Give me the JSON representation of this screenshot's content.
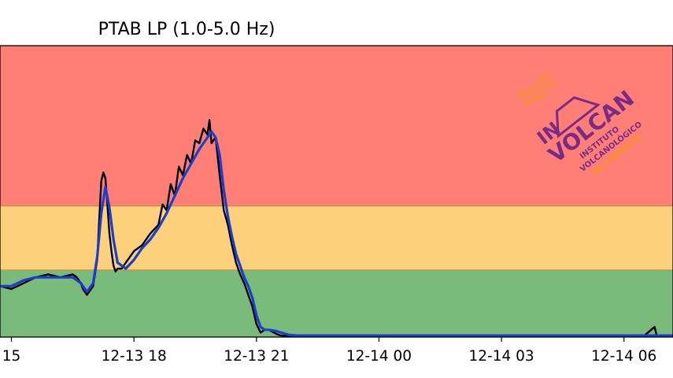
{
  "chart_data": {
    "type": "line",
    "title": "PTAB LP (1.0-5.0 Hz)",
    "xlabel": "",
    "ylabel": "",
    "x_tick_labels": [
      "15",
      "12-13 18",
      "12-13 21",
      "12-14 00",
      "12-14 03",
      "12-14 06"
    ],
    "x_tick_hours": [
      15,
      18,
      21,
      24,
      27,
      30
    ],
    "x_range_hours": [
      14.72,
      31.2
    ],
    "y_range": [
      0,
      100
    ],
    "bands": [
      {
        "name": "green",
        "from": 0,
        "to": 23,
        "color": "#7aba7a"
      },
      {
        "name": "yellow",
        "from": 23,
        "to": 45,
        "color": "#fdd17c"
      },
      {
        "name": "red",
        "from": 45,
        "to": 100,
        "color": "#ff7f77"
      }
    ],
    "grid": false,
    "series": [
      {
        "color": "#000000",
        "style": "raw",
        "x": [
          14.72,
          15.0,
          15.3,
          15.6,
          15.9,
          16.2,
          16.5,
          16.6,
          16.7,
          16.75,
          16.85,
          17.0,
          17.1,
          17.15,
          17.2,
          17.25,
          17.3,
          17.35,
          17.4,
          17.45,
          17.5,
          17.55,
          17.6,
          17.7,
          17.8,
          17.9,
          18.0,
          18.2,
          18.4,
          18.6,
          18.7,
          18.8,
          18.9,
          19.0,
          19.1,
          19.2,
          19.3,
          19.4,
          19.5,
          19.6,
          19.7,
          19.8,
          19.85,
          19.9,
          20.0,
          20.1,
          20.2,
          20.3,
          20.4,
          20.5,
          20.6,
          20.7,
          20.75,
          20.8,
          20.9,
          21.0,
          21.1,
          21.2,
          21.3,
          21.5,
          21.6,
          21.8,
          22.0,
          22.2,
          22.5,
          23.0,
          23.5,
          24.0,
          24.5,
          25.0,
          25.5,
          26.0,
          26.5,
          27.0,
          27.5,
          28.0,
          28.5,
          29.0,
          29.5,
          30.0,
          30.3,
          30.5,
          30.75,
          30.8,
          31.0,
          31.2
        ],
        "y": [
          17.5,
          16.5,
          18.5,
          20.5,
          21.5,
          20.5,
          21.5,
          20.5,
          18.5,
          16.5,
          14.5,
          17.5,
          26.5,
          40.5,
          53.5,
          56.5,
          54.5,
          45.5,
          35.5,
          29.5,
          24.5,
          22.5,
          23.5,
          23.5,
          25.5,
          27.5,
          29.5,
          31.5,
          35.5,
          38.5,
          45.5,
          43.5,
          52.5,
          48.5,
          58.5,
          55.5,
          62.5,
          59.5,
          67.5,
          66.5,
          71.5,
          69.5,
          74.5,
          66.5,
          68.5,
          55.5,
          43.5,
          38.5,
          31.5,
          25.5,
          21.5,
          18.5,
          16.5,
          14.5,
          10.5,
          4.5,
          1.5,
          2.5,
          2.5,
          1.0,
          0.5,
          0.3,
          0.5,
          0.3,
          0.5,
          0.5,
          0.3,
          0.5,
          0.3,
          0.5,
          0.5,
          0.3,
          0.5,
          0.5,
          0.3,
          0.5,
          0.3,
          0.5,
          0.5,
          0.5,
          0.3,
          0.5,
          3.5,
          0.5,
          0.5,
          0.5
        ]
      },
      {
        "color": "#1a3fd0",
        "style": "smoothed",
        "x": [
          14.72,
          15.0,
          15.3,
          15.6,
          15.9,
          16.2,
          16.5,
          16.7,
          16.85,
          17.0,
          17.1,
          17.2,
          17.3,
          17.4,
          17.5,
          17.6,
          17.8,
          18.0,
          18.2,
          18.4,
          18.6,
          18.8,
          19.0,
          19.2,
          19.4,
          19.6,
          19.8,
          19.9,
          20.0,
          20.1,
          20.2,
          20.3,
          20.4,
          20.5,
          20.6,
          20.7,
          20.8,
          20.9,
          21.0,
          21.1,
          21.2,
          21.3,
          21.5,
          21.8,
          22.0,
          22.5,
          23.0,
          24.0,
          25.0,
          26.0,
          27.0,
          28.0,
          29.0,
          30.0,
          31.0,
          31.2
        ],
        "y": [
          17.5,
          17.5,
          19.5,
          20.5,
          20.5,
          20.5,
          20.5,
          18.5,
          15.5,
          18.5,
          27.5,
          42.5,
          51.5,
          44.5,
          33.5,
          25.5,
          23.5,
          26.5,
          30.5,
          33.5,
          37.5,
          42.5,
          48.5,
          54.5,
          59.5,
          64.5,
          68.5,
          70.5,
          68.5,
          62.5,
          50.5,
          41.5,
          34.5,
          28.5,
          24.5,
          20.5,
          17.5,
          13.5,
          7.5,
          3.5,
          2.5,
          2.5,
          2.0,
          0.7,
          0.5,
          0.5,
          0.5,
          0.5,
          0.5,
          0.5,
          0.5,
          0.5,
          0.5,
          0.5,
          0.5,
          0.5
        ]
      }
    ]
  },
  "logo": {
    "text_in": "IN",
    "text_volcan": "VOLCAN",
    "text_line1": "INSTITUTO",
    "text_line2": "VOLCANOLÓGICO",
    "text_line3": "DE CANARIAS",
    "color_primary": "#7a2b86",
    "color_accent": "#f7941d"
  }
}
